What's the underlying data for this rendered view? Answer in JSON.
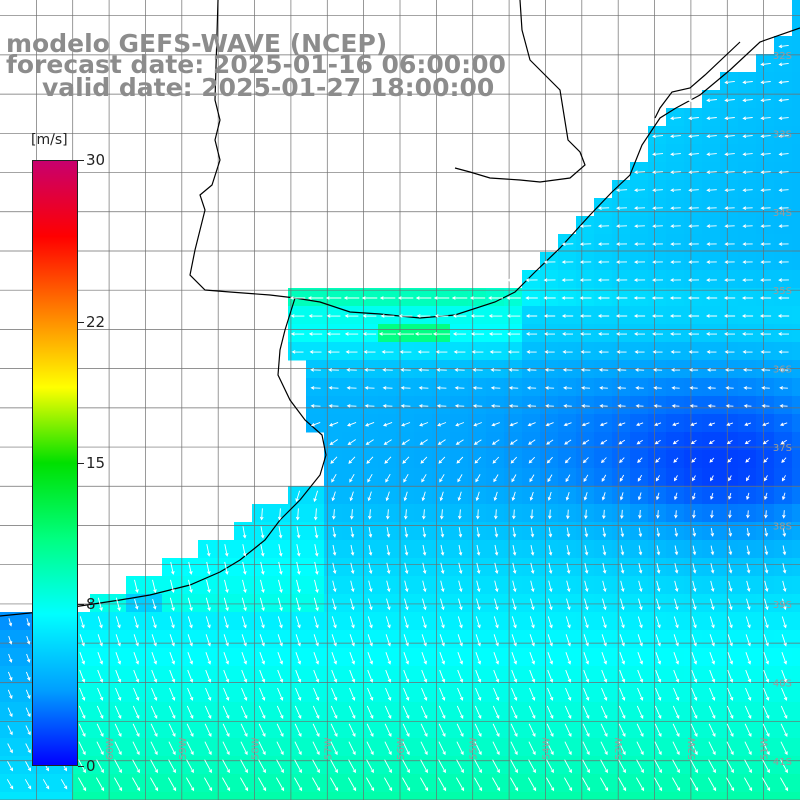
{
  "header": {
    "line1": "modelo GEFS-WAVE (NCEP)",
    "line2": "forecast date: 2025-01-16 06:00:00",
    "line3": "valid date: 2025-01-27 18:00:00"
  },
  "colorbar": {
    "unit": "[m/s]",
    "min": 0,
    "max": 30,
    "ticks": [
      "30",
      "22",
      "15",
      "8",
      "0"
    ],
    "tick_values": [
      30,
      22,
      15,
      8,
      0
    ],
    "colors": [
      "#0000ff",
      "#00a0ff",
      "#00ffff",
      "#00ff80",
      "#00e000",
      "#ffff00",
      "#ff8000",
      "#ff0000",
      "#c8006e"
    ]
  },
  "grid": {
    "lat_labels": [
      "32S",
      "33S",
      "34S",
      "35S",
      "36S",
      "37S",
      "38S",
      "39S",
      "40S",
      "41S"
    ],
    "lon_labels": [
      "61W",
      "60W",
      "59W",
      "58W",
      "57W",
      "56W",
      "55W",
      "54W",
      "53W",
      "52W",
      "51W"
    ],
    "lon_range": [
      -61.5,
      -50.5
    ],
    "lat_range": [
      -41.5,
      -31.3
    ]
  },
  "map_data": {
    "variable": "wind speed",
    "unit": "m/s",
    "field_description": "NE/E winds near coast (~6-13 m/s), weaker offshore (~3-5 m/s), southerly/SW flow in south (~8-12 m/s)"
  }
}
